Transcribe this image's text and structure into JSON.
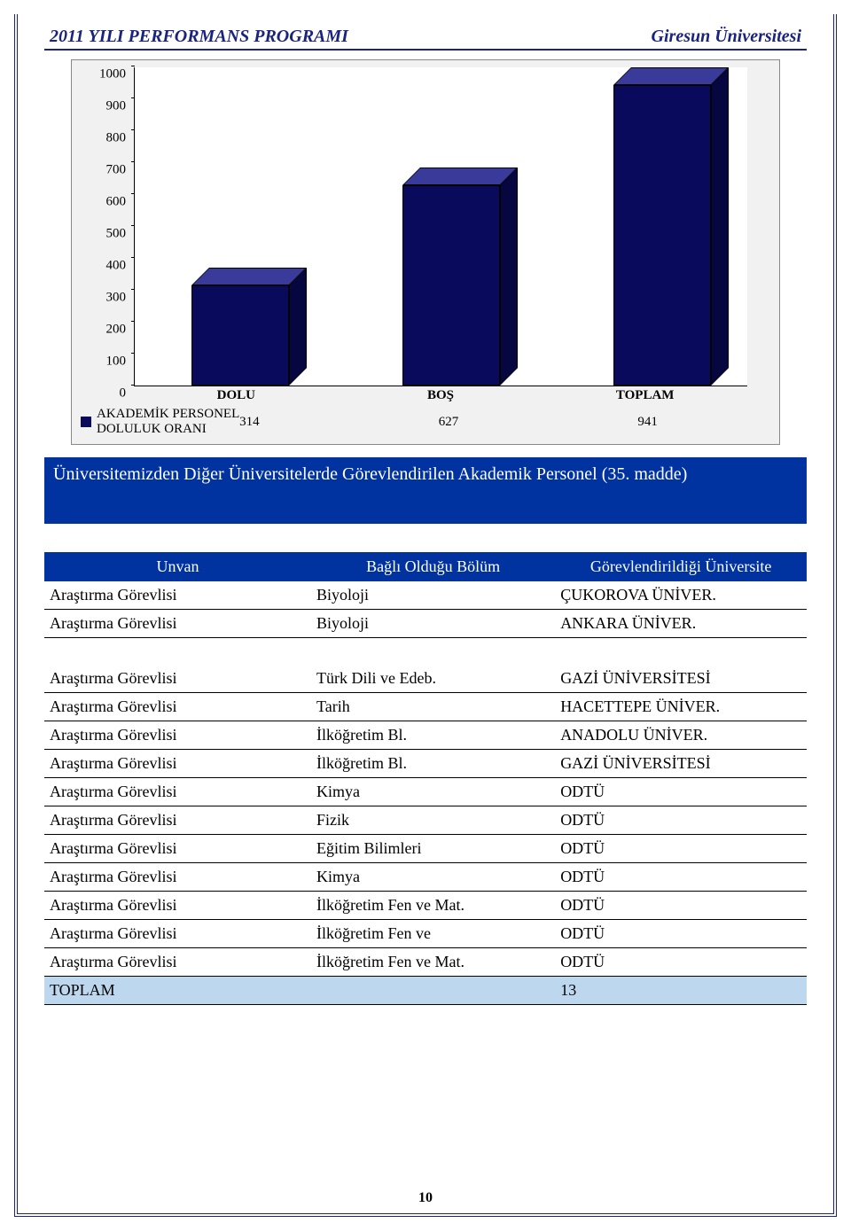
{
  "header": {
    "left": "2011 YILI PERFORMANS PROGRAMI",
    "right": "Giresun Üniversitesi"
  },
  "chart": {
    "type": "bar",
    "ylim": [
      0,
      1000
    ],
    "tick_step": 100,
    "y_ticks": [
      0,
      100,
      200,
      300,
      400,
      500,
      600,
      700,
      800,
      900,
      1000
    ],
    "categories": [
      "DOLU",
      "BOŞ",
      "TOPLAM"
    ],
    "values": [
      314,
      627,
      941
    ],
    "bar_front_color": "#0a0a5c",
    "bar_top_color": "#3a3a9a",
    "bar_side_color": "#060640",
    "plot_bg": "#f1f1f1",
    "inner_bg": "#ffffff",
    "legend_label": "AKADEMİK PERSONEL DOLULUK ORANI",
    "axis_color": "#000000"
  },
  "banner": {
    "text": "Üniversitemizden Diğer Üniversitelerde Görevlendirilen Akademik Personel (35. madde)"
  },
  "table": {
    "headers": [
      "Unvan",
      "Bağlı Olduğu Bölüm",
      "Görevlendirildiği Üniversite"
    ],
    "header_bg": "#0033a0",
    "total_bg": "#bdd7ee",
    "rows": [
      [
        "Araştırma Görevlisi",
        "Biyoloji",
        "ÇUKOROVA ÜNİVER."
      ],
      [
        "Araştırma Görevlisi",
        "Biyoloji",
        "ANKARA ÜNİVER."
      ]
    ],
    "rows2": [
      [
        "Araştırma Görevlisi",
        "Türk Dili ve Edeb.",
        "GAZİ ÜNİVERSİTESİ"
      ],
      [
        "Araştırma Görevlisi",
        "Tarih",
        "HACETTEPE ÜNİVER."
      ],
      [
        "Araştırma Görevlisi",
        "İlköğretim Bl.",
        "ANADOLU ÜNİVER."
      ],
      [
        "Araştırma Görevlisi",
        "İlköğretim Bl.",
        "GAZİ ÜNİVERSİTESİ"
      ],
      [
        "Araştırma Görevlisi",
        "Kimya",
        "ODTÜ"
      ],
      [
        "Araştırma Görevlisi",
        "Fizik",
        "ODTÜ"
      ],
      [
        "Araştırma Görevlisi",
        "Eğitim Bilimleri",
        "ODTÜ"
      ],
      [
        "Araştırma Görevlisi",
        "Kimya",
        "ODTÜ"
      ],
      [
        "Araştırma Görevlisi",
        "İlköğretim Fen ve Mat.",
        "ODTÜ"
      ],
      [
        "Araştırma Görevlisi",
        "İlköğretim  Fen ve",
        "ODTÜ"
      ],
      [
        "Araştırma Görevlisi",
        "İlköğretim  Fen ve Mat.",
        "ODTÜ"
      ]
    ],
    "total_label": "TOPLAM",
    "total_value": "13"
  },
  "page_number": "10"
}
